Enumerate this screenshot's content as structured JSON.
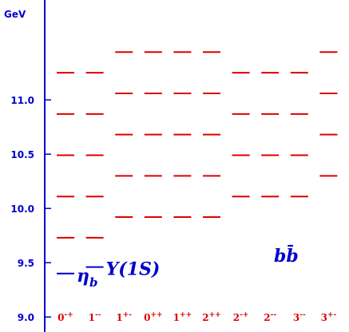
{
  "chart_data": {
    "type": "scatter",
    "ylabel": "GeV",
    "ylim": [
      8.95,
      11.92
    ],
    "yticks": [
      {
        "value": 9.0,
        "label": "9.0"
      },
      {
        "value": 9.5,
        "label": "9.5"
      },
      {
        "value": 10.0,
        "label": "10.0"
      },
      {
        "value": 10.5,
        "label": "10.5"
      },
      {
        "value": 11.0,
        "label": "11.0"
      }
    ],
    "categories": [
      {
        "base": "0",
        "sup": "-+",
        "levels": [
          9.73,
          10.11,
          10.49,
          10.87,
          11.25
        ]
      },
      {
        "base": "1",
        "sup": "--",
        "levels": [
          9.73,
          10.11,
          10.49,
          10.87,
          11.25
        ]
      },
      {
        "base": "1",
        "sup": "+-",
        "levels": [
          9.92,
          10.3,
          10.68,
          11.06,
          11.44
        ]
      },
      {
        "base": "0",
        "sup": "++",
        "levels": [
          9.92,
          10.3,
          10.68,
          11.06,
          11.44
        ]
      },
      {
        "base": "1",
        "sup": "++",
        "levels": [
          9.92,
          10.3,
          10.68,
          11.06,
          11.44
        ]
      },
      {
        "base": "2",
        "sup": "++",
        "levels": [
          9.92,
          10.3,
          10.68,
          11.06,
          11.44
        ]
      },
      {
        "base": "2",
        "sup": "-+",
        "levels": [
          10.11,
          10.49,
          10.87,
          11.25
        ]
      },
      {
        "base": "2",
        "sup": "--",
        "levels": [
          10.11,
          10.49,
          10.87,
          11.25
        ]
      },
      {
        "base": "3",
        "sup": "--",
        "levels": [
          10.11,
          10.49,
          10.87,
          11.25
        ]
      },
      {
        "base": "3",
        "sup": "+-",
        "levels": [
          10.3,
          10.68,
          11.06,
          11.44
        ]
      }
    ],
    "experimental": [
      {
        "label": "η",
        "sub": "b",
        "value": 9.4,
        "category": 0
      },
      {
        "label": "Υ(1S)",
        "value": 9.46,
        "category": 1
      }
    ],
    "annotation": "bb̄",
    "colors": {
      "axis": "#0000cc",
      "levels": "#dd0000",
      "experimental": "#0000cc"
    }
  }
}
